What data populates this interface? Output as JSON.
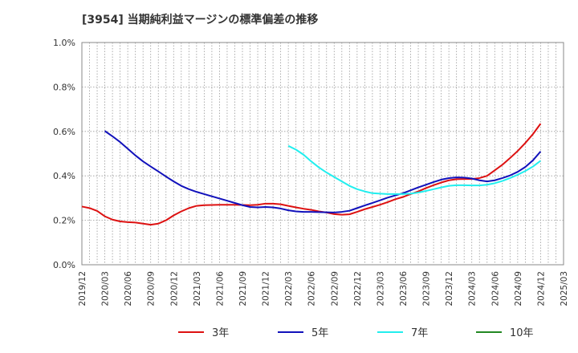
{
  "chart_data": {
    "type": "line",
    "title": "[3954]  当期純利益マージンの標準偏差の推移",
    "xlabel": "",
    "ylabel": "",
    "ylim": [
      0,
      0.01
    ],
    "y_ticks": [
      {
        "value": 0.0,
        "label": "0.0%"
      },
      {
        "value": 0.002,
        "label": "0.2%"
      },
      {
        "value": 0.004,
        "label": "0.4%"
      },
      {
        "value": 0.006,
        "label": "0.6%"
      },
      {
        "value": 0.008,
        "label": "0.8%"
      },
      {
        "value": 0.01,
        "label": "1.0%"
      }
    ],
    "x_ticks": [
      "2019/12",
      "2020/03",
      "2020/06",
      "2020/09",
      "2020/12",
      "2021/03",
      "2021/06",
      "2021/09",
      "2021/12",
      "2022/03",
      "2022/06",
      "2022/09",
      "2022/12",
      "2023/03",
      "2023/06",
      "2023/09",
      "2023/12",
      "2024/03",
      "2024/06",
      "2024/09",
      "2024/12",
      "2025/03"
    ],
    "grid": true,
    "legend_position": "bottom",
    "series": [
      {
        "name": "3年",
        "color": "#dd1111",
        "points": [
          [
            "2019/12",
            0.00262
          ],
          [
            "2020/01",
            0.00255
          ],
          [
            "2020/02",
            0.00242
          ],
          [
            "2020/03",
            0.00218
          ],
          [
            "2020/04",
            0.00203
          ],
          [
            "2020/05",
            0.00195
          ],
          [
            "2020/06",
            0.00192
          ],
          [
            "2020/07",
            0.0019
          ],
          [
            "2020/08",
            0.00185
          ],
          [
            "2020/09",
            0.0018
          ],
          [
            "2020/10",
            0.00185
          ],
          [
            "2020/11",
            0.002
          ],
          [
            "2020/12",
            0.00222
          ],
          [
            "2021/01",
            0.0024
          ],
          [
            "2021/02",
            0.00255
          ],
          [
            "2021/03",
            0.00265
          ],
          [
            "2021/04",
            0.00268
          ],
          [
            "2021/05",
            0.00269
          ],
          [
            "2021/06",
            0.0027
          ],
          [
            "2021/07",
            0.0027
          ],
          [
            "2021/08",
            0.0027
          ],
          [
            "2021/09",
            0.00269
          ],
          [
            "2021/10",
            0.00268
          ],
          [
            "2021/11",
            0.0027
          ],
          [
            "2021/12",
            0.00275
          ],
          [
            "2022/01",
            0.00275
          ],
          [
            "2022/02",
            0.00272
          ],
          [
            "2022/03",
            0.00265
          ],
          [
            "2022/04",
            0.00258
          ],
          [
            "2022/05",
            0.00252
          ],
          [
            "2022/06",
            0.00247
          ],
          [
            "2022/07",
            0.0024
          ],
          [
            "2022/08",
            0.00235
          ],
          [
            "2022/09",
            0.00228
          ],
          [
            "2022/10",
            0.00225
          ],
          [
            "2022/11",
            0.00227
          ],
          [
            "2022/12",
            0.00238
          ],
          [
            "2023/01",
            0.0025
          ],
          [
            "2023/02",
            0.0026
          ],
          [
            "2023/03",
            0.0027
          ],
          [
            "2023/04",
            0.00282
          ],
          [
            "2023/05",
            0.00295
          ],
          [
            "2023/06",
            0.00305
          ],
          [
            "2023/07",
            0.00318
          ],
          [
            "2023/08",
            0.0033
          ],
          [
            "2023/09",
            0.00345
          ],
          [
            "2023/10",
            0.00358
          ],
          [
            "2023/11",
            0.0037
          ],
          [
            "2023/12",
            0.0038
          ],
          [
            "2024/01",
            0.00385
          ],
          [
            "2024/02",
            0.00386
          ],
          [
            "2024/03",
            0.00386
          ],
          [
            "2024/04",
            0.0039
          ],
          [
            "2024/05",
            0.004
          ],
          [
            "2024/06",
            0.00425
          ],
          [
            "2024/07",
            0.0045
          ],
          [
            "2024/08",
            0.0048
          ],
          [
            "2024/09",
            0.00512
          ],
          [
            "2024/10",
            0.00548
          ],
          [
            "2024/11",
            0.00588
          ],
          [
            "2024/12",
            0.00635
          ]
        ]
      },
      {
        "name": "5年",
        "color": "#1111bb",
        "points": [
          [
            "2020/03",
            0.00602
          ],
          [
            "2020/04",
            0.00578
          ],
          [
            "2020/05",
            0.00552
          ],
          [
            "2020/06",
            0.00522
          ],
          [
            "2020/07",
            0.00492
          ],
          [
            "2020/08",
            0.00465
          ],
          [
            "2020/09",
            0.00442
          ],
          [
            "2020/10",
            0.0042
          ],
          [
            "2020/11",
            0.00397
          ],
          [
            "2020/12",
            0.00375
          ],
          [
            "2021/01",
            0.00355
          ],
          [
            "2021/02",
            0.0034
          ],
          [
            "2021/03",
            0.00328
          ],
          [
            "2021/04",
            0.00318
          ],
          [
            "2021/05",
            0.00308
          ],
          [
            "2021/06",
            0.00298
          ],
          [
            "2021/07",
            0.00288
          ],
          [
            "2021/08",
            0.00278
          ],
          [
            "2021/09",
            0.00268
          ],
          [
            "2021/10",
            0.0026
          ],
          [
            "2021/11",
            0.00258
          ],
          [
            "2021/12",
            0.0026
          ],
          [
            "2022/01",
            0.00258
          ],
          [
            "2022/02",
            0.00253
          ],
          [
            "2022/03",
            0.00245
          ],
          [
            "2022/04",
            0.0024
          ],
          [
            "2022/05",
            0.00238
          ],
          [
            "2022/06",
            0.00238
          ],
          [
            "2022/07",
            0.00237
          ],
          [
            "2022/08",
            0.00236
          ],
          [
            "2022/09",
            0.00235
          ],
          [
            "2022/10",
            0.00238
          ],
          [
            "2022/11",
            0.00243
          ],
          [
            "2022/12",
            0.00255
          ],
          [
            "2023/01",
            0.00267
          ],
          [
            "2023/02",
            0.00278
          ],
          [
            "2023/03",
            0.0029
          ],
          [
            "2023/04",
            0.00302
          ],
          [
            "2023/05",
            0.00312
          ],
          [
            "2023/06",
            0.00322
          ],
          [
            "2023/07",
            0.00335
          ],
          [
            "2023/08",
            0.00348
          ],
          [
            "2023/09",
            0.0036
          ],
          [
            "2023/10",
            0.00372
          ],
          [
            "2023/11",
            0.00383
          ],
          [
            "2023/12",
            0.0039
          ],
          [
            "2024/01",
            0.00393
          ],
          [
            "2024/02",
            0.00392
          ],
          [
            "2024/03",
            0.00388
          ],
          [
            "2024/04",
            0.0038
          ],
          [
            "2024/05",
            0.00375
          ],
          [
            "2024/06",
            0.0038
          ],
          [
            "2024/07",
            0.0039
          ],
          [
            "2024/08",
            0.00402
          ],
          [
            "2024/09",
            0.00418
          ],
          [
            "2024/10",
            0.0044
          ],
          [
            "2024/11",
            0.0047
          ],
          [
            "2024/12",
            0.0051
          ]
        ]
      },
      {
        "name": "7年",
        "color": "#22eeee",
        "points": [
          [
            "2022/03",
            0.00535
          ],
          [
            "2022/04",
            0.00518
          ],
          [
            "2022/05",
            0.00495
          ],
          [
            "2022/06",
            0.00465
          ],
          [
            "2022/07",
            0.00438
          ],
          [
            "2022/08",
            0.00415
          ],
          [
            "2022/09",
            0.00395
          ],
          [
            "2022/10",
            0.00375
          ],
          [
            "2022/11",
            0.00355
          ],
          [
            "2022/12",
            0.0034
          ],
          [
            "2023/01",
            0.0033
          ],
          [
            "2023/02",
            0.00322
          ],
          [
            "2023/03",
            0.0032
          ],
          [
            "2023/04",
            0.00318
          ],
          [
            "2023/05",
            0.00318
          ],
          [
            "2023/06",
            0.00318
          ],
          [
            "2023/07",
            0.0032
          ],
          [
            "2023/08",
            0.00325
          ],
          [
            "2023/09",
            0.00332
          ],
          [
            "2023/10",
            0.0034
          ],
          [
            "2023/11",
            0.00348
          ],
          [
            "2023/12",
            0.00355
          ],
          [
            "2024/01",
            0.00358
          ],
          [
            "2024/02",
            0.00358
          ],
          [
            "2024/03",
            0.00357
          ],
          [
            "2024/04",
            0.00357
          ],
          [
            "2024/05",
            0.0036
          ],
          [
            "2024/06",
            0.00367
          ],
          [
            "2024/07",
            0.00377
          ],
          [
            "2024/08",
            0.0039
          ],
          [
            "2024/09",
            0.00405
          ],
          [
            "2024/10",
            0.00422
          ],
          [
            "2024/11",
            0.00442
          ],
          [
            "2024/12",
            0.00468
          ]
        ]
      },
      {
        "name": "10年",
        "color": "#228822",
        "points": []
      }
    ]
  }
}
